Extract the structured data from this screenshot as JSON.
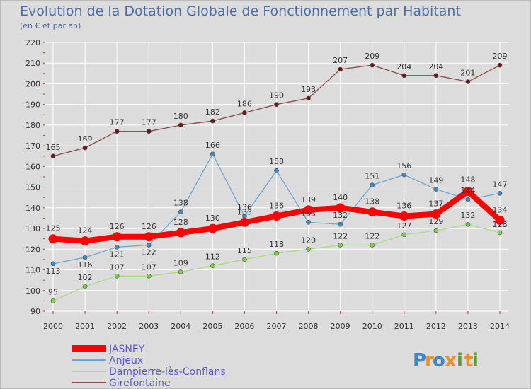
{
  "chart_data": {
    "type": "line",
    "title": "Evolution de la Dotation Globale de Fonctionnement par Habitant",
    "subtitle": "(en € et par an)",
    "xlabel": "",
    "ylabel": "",
    "ylim": [
      90,
      220
    ],
    "yticks": [
      90,
      100,
      110,
      120,
      130,
      140,
      150,
      160,
      170,
      180,
      190,
      200,
      210,
      220
    ],
    "categories": [
      "2000",
      "2001",
      "2002",
      "2003",
      "2004",
      "2005",
      "2006",
      "2007",
      "2008",
      "2009",
      "2010",
      "2011",
      "2012",
      "2013",
      "2014"
    ],
    "series": [
      {
        "name": "Girefontaine",
        "color": "#6b1a1a",
        "line_color": "#8c4a4a",
        "values": [
          165,
          169,
          177,
          177,
          180,
          182,
          186,
          190,
          193,
          207,
          209,
          204,
          204,
          201,
          209
        ]
      },
      {
        "name": "Anjeux",
        "color": "#3d8fcb",
        "line_color": "#6aa6d6",
        "values": [
          113,
          116,
          121,
          122,
          138,
          166,
          136,
          158,
          133,
          132,
          151,
          156,
          149,
          144,
          147
        ]
      },
      {
        "name": "Dampierre-lès-Conflans",
        "color": "#7fd04a",
        "line_color": "#a8dc84",
        "values": [
          95,
          102,
          107,
          107,
          109,
          112,
          115,
          118,
          120,
          122,
          122,
          127,
          129,
          132,
          128
        ]
      },
      {
        "name": "JASNEY",
        "color": "#ff0000",
        "line_color": "#ff0000",
        "values": [
          125,
          124,
          126,
          126,
          128,
          130,
          133,
          136,
          139,
          140,
          138,
          136,
          137,
          148,
          134
        ]
      }
    ],
    "legend_order": [
      "JASNEY",
      "Anjeux",
      "Dampierre-lès-Conflans",
      "Girefontaine"
    ],
    "legend_position": "bottom-left",
    "grid": true
  },
  "logo": {
    "letters": [
      "P",
      "r",
      "o",
      "x",
      "i",
      "t",
      "i"
    ],
    "colors": [
      "#3f87c6",
      "#e8912a",
      "#3f87c6",
      "#e8912a",
      "#5a9e2f",
      "#e8912a",
      "#5a9e2f"
    ]
  }
}
